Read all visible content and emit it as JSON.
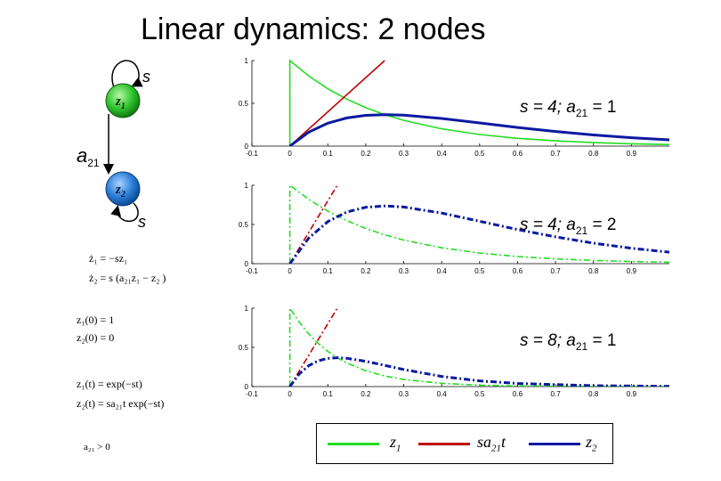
{
  "title": "Linear dynamics: 2 nodes",
  "diagram": {
    "node1": "z",
    "node1_sub": "1",
    "node2": "z",
    "node2_sub": "2",
    "self_loop_label": "s",
    "edge_label": "a",
    "edge_label_sub": "21",
    "colors": {
      "node1": "#1fb51f",
      "node2": "#1f6fd0"
    }
  },
  "equations": {
    "ode1": "ż₁ = −sz₁",
    "ode2": "ż₂ = s (a₂₁z₁ − z₂ )",
    "init1": "z₁(0) = 1",
    "init2": "z₂(0) = 0",
    "sol1": "z₁(t) = exp(−st)",
    "sol2": "z₂(t) = sa₂₁t exp(−st)",
    "cond": "a₂₁ > 0"
  },
  "legend": {
    "items": [
      {
        "label": "z",
        "sub": "1",
        "color": "#22dd22"
      },
      {
        "label": "sa",
        "sub": "21",
        "suffix": "t",
        "color": "#c00000"
      },
      {
        "label": "z",
        "sub": "2",
        "color": "#0a1aa0"
      }
    ]
  },
  "chart_data": [
    {
      "type": "line",
      "annotation": "s = 4;   a21 = 1",
      "s": 4,
      "a21": 1,
      "xlim": [
        -0.1,
        1.0
      ],
      "ylim": [
        0,
        1
      ],
      "x_ticks": [
        "-0.1",
        "0",
        "0.1",
        "0.2",
        "0.3",
        "0.4",
        "0.5",
        "0.6",
        "0.7",
        "0.8",
        "0.9"
      ],
      "y_ticks": [
        "0",
        "0.5",
        "1"
      ],
      "line_style": "solid",
      "series": [
        {
          "name": "z1",
          "color": "#22dd22",
          "x": [
            0,
            0.05,
            0.1,
            0.15,
            0.2,
            0.25,
            0.3,
            0.4,
            0.5,
            0.6,
            0.7,
            0.8,
            0.9,
            1.0
          ],
          "y": [
            1,
            0.819,
            0.67,
            0.549,
            0.449,
            0.368,
            0.301,
            0.202,
            0.135,
            0.091,
            0.061,
            0.041,
            0.027,
            0.018
          ]
        },
        {
          "name": "sa21t",
          "color": "#c00000",
          "x": [
            0,
            0.25
          ],
          "y": [
            0,
            1.0
          ]
        },
        {
          "name": "z2",
          "color": "#0a1aa0",
          "x": [
            0,
            0.05,
            0.1,
            0.15,
            0.2,
            0.25,
            0.3,
            0.4,
            0.5,
            0.6,
            0.7,
            0.8,
            0.9,
            1.0
          ],
          "y": [
            0,
            0.164,
            0.268,
            0.329,
            0.359,
            0.368,
            0.361,
            0.323,
            0.271,
            0.218,
            0.171,
            0.13,
            0.098,
            0.073
          ]
        }
      ]
    },
    {
      "type": "line",
      "annotation": "s = 4;   a21 = 2",
      "s": 4,
      "a21": 2,
      "xlim": [
        -0.1,
        1.0
      ],
      "ylim": [
        0,
        1
      ],
      "x_ticks": [
        "-0.1",
        "0",
        "0.1",
        "0.2",
        "0.3",
        "0.4",
        "0.5",
        "0.6",
        "0.7",
        "0.8",
        "0.9"
      ],
      "y_ticks": [
        "0",
        "0.5",
        "1"
      ],
      "line_style": "dashdot",
      "series": [
        {
          "name": "z1",
          "color": "#22dd22",
          "x": [
            0,
            0.05,
            0.1,
            0.15,
            0.2,
            0.25,
            0.3,
            0.4,
            0.5,
            0.6,
            0.7,
            0.8,
            0.9,
            1.0
          ],
          "y": [
            1,
            0.819,
            0.67,
            0.549,
            0.449,
            0.368,
            0.301,
            0.202,
            0.135,
            0.091,
            0.061,
            0.041,
            0.027,
            0.018
          ]
        },
        {
          "name": "sa21t",
          "color": "#c00000",
          "x": [
            0,
            0.125
          ],
          "y": [
            0,
            1.0
          ]
        },
        {
          "name": "z2",
          "color": "#0a1aa0",
          "x": [
            0,
            0.05,
            0.1,
            0.15,
            0.2,
            0.25,
            0.3,
            0.4,
            0.5,
            0.6,
            0.7,
            0.8,
            0.9,
            1.0
          ],
          "y": [
            0,
            0.328,
            0.536,
            0.659,
            0.719,
            0.736,
            0.723,
            0.646,
            0.541,
            0.435,
            0.342,
            0.261,
            0.197,
            0.147
          ]
        }
      ]
    },
    {
      "type": "line",
      "annotation": "s = 8;   a21 = 1",
      "s": 8,
      "a21": 1,
      "xlim": [
        -0.1,
        1.0
      ],
      "ylim": [
        0,
        1
      ],
      "x_ticks": [
        "-0.1",
        "0",
        "0.1",
        "0.2",
        "0.3",
        "0.4",
        "0.5",
        "0.6",
        "0.7",
        "0.8",
        "0.9"
      ],
      "y_ticks": [
        "0",
        "0.5",
        "1"
      ],
      "line_style": "dashdot",
      "series": [
        {
          "name": "z1",
          "color": "#22dd22",
          "x": [
            0,
            0.025,
            0.05,
            0.075,
            0.1,
            0.125,
            0.15,
            0.2,
            0.25,
            0.3,
            0.4,
            0.5,
            0.6,
            0.8,
            1.0
          ],
          "y": [
            1,
            0.819,
            0.67,
            0.549,
            0.449,
            0.368,
            0.301,
            0.202,
            0.135,
            0.091,
            0.041,
            0.018,
            0.008,
            0.002,
            0.0003
          ]
        },
        {
          "name": "sa21t",
          "color": "#c00000",
          "x": [
            0,
            0.125
          ],
          "y": [
            0,
            1.0
          ]
        },
        {
          "name": "z2",
          "color": "#0a1aa0",
          "x": [
            0,
            0.025,
            0.05,
            0.075,
            0.1,
            0.125,
            0.15,
            0.2,
            0.25,
            0.3,
            0.4,
            0.5,
            0.6,
            0.8,
            1.0
          ],
          "y": [
            0,
            0.164,
            0.268,
            0.329,
            0.359,
            0.368,
            0.361,
            0.323,
            0.271,
            0.218,
            0.13,
            0.073,
            0.04,
            0.011,
            0.003
          ]
        }
      ]
    }
  ]
}
